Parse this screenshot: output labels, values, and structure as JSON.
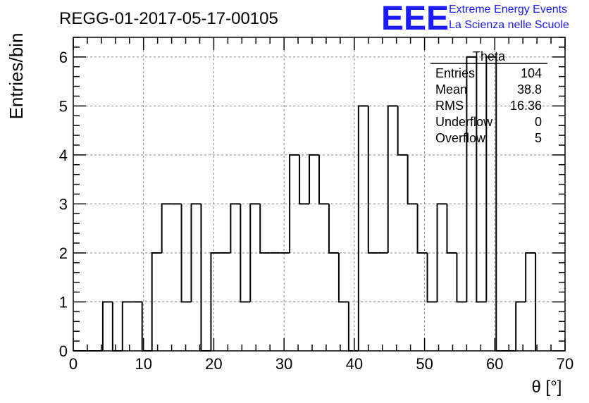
{
  "header": {
    "run_title": "REGG-01-2017-05-17-00105",
    "logo_text": "EEE",
    "logo_line1": "Extreme Energy Events",
    "logo_line2": "La Scienza nelle Scuole",
    "logo_color": "#1a1aff"
  },
  "stats": {
    "title": "Theta",
    "rows": [
      {
        "label": "Entries",
        "value": "104"
      },
      {
        "label": "Mean",
        "value": "38.8"
      },
      {
        "label": "RMS",
        "value": "16.36"
      },
      {
        "label": "Underflow",
        "value": "0"
      },
      {
        "label": "Overflow",
        "value": "5"
      }
    ]
  },
  "chart_data": {
    "type": "histogram",
    "xlabel": "θ [°]",
    "ylabel": "Entries/bin",
    "xlim": [
      0,
      70
    ],
    "ylim": [
      0,
      6.4
    ],
    "bin_width": 1.4,
    "x_ticks": [
      0,
      10,
      20,
      30,
      40,
      50,
      60,
      70
    ],
    "y_ticks": [
      0,
      1,
      2,
      3,
      4,
      5,
      6
    ],
    "grid": true,
    "values": [
      0,
      0,
      0,
      1,
      0,
      1,
      1,
      0,
      2,
      3,
      3,
      1,
      3,
      0,
      2,
      2,
      3,
      1,
      3,
      2,
      2,
      2,
      4,
      3,
      4,
      3,
      2,
      1,
      0,
      5,
      2,
      2,
      5,
      4,
      3,
      2,
      1,
      3,
      2,
      1,
      6,
      1,
      6,
      0,
      0,
      1,
      2
    ]
  }
}
